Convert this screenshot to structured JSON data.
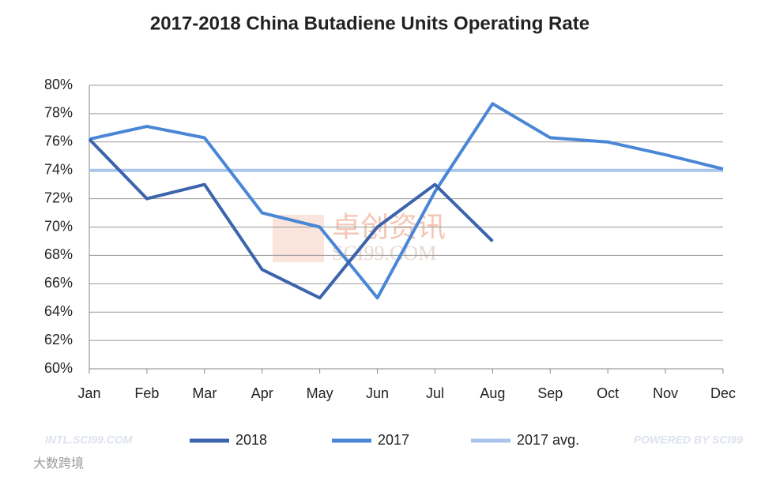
{
  "chart_data": {
    "type": "line",
    "title": "2017-2018 China Butadiene Units Operating Rate",
    "categories": [
      "Jan",
      "Feb",
      "Mar",
      "Apr",
      "May",
      "Jun",
      "Jul",
      "Aug",
      "Sep",
      "Oct",
      "Nov",
      "Dec"
    ],
    "series": [
      {
        "name": "2018",
        "color": "#3b64ad",
        "values": [
          76.2,
          72,
          73,
          67,
          65,
          70,
          73,
          69,
          null,
          null,
          null,
          null
        ]
      },
      {
        "name": "2017",
        "color": "#4a86d6",
        "values": [
          76.2,
          77.1,
          76.3,
          71,
          70,
          65,
          72.5,
          78.7,
          76.3,
          76,
          75.1,
          74.1
        ]
      },
      {
        "name": "2017 avg.",
        "color": "#a9c5ec",
        "values": [
          74,
          74,
          74,
          74,
          74,
          74,
          74,
          74,
          74,
          74,
          74,
          74
        ]
      }
    ],
    "ylim": [
      60,
      80
    ],
    "yticks": [
      {
        "value": 60,
        "label": "60%"
      },
      {
        "value": 62,
        "label": "62%"
      },
      {
        "value": 64,
        "label": "64%"
      },
      {
        "value": 66,
        "label": "66%"
      },
      {
        "value": 68,
        "label": "68%"
      },
      {
        "value": 70,
        "label": "70%"
      },
      {
        "value": 72,
        "label": "72%"
      },
      {
        "value": 74,
        "label": "74%"
      },
      {
        "value": 76,
        "label": "76%"
      },
      {
        "value": 78,
        "label": "78%"
      },
      {
        "value": 80,
        "label": "80%"
      }
    ],
    "grid": true,
    "legend": "bottom"
  },
  "watermarks": [
    "卓创资讯",
    "SCI99.COM",
    "INTL.SCI99.COM",
    "POWERED BY SCI99",
    "大数跨境"
  ]
}
